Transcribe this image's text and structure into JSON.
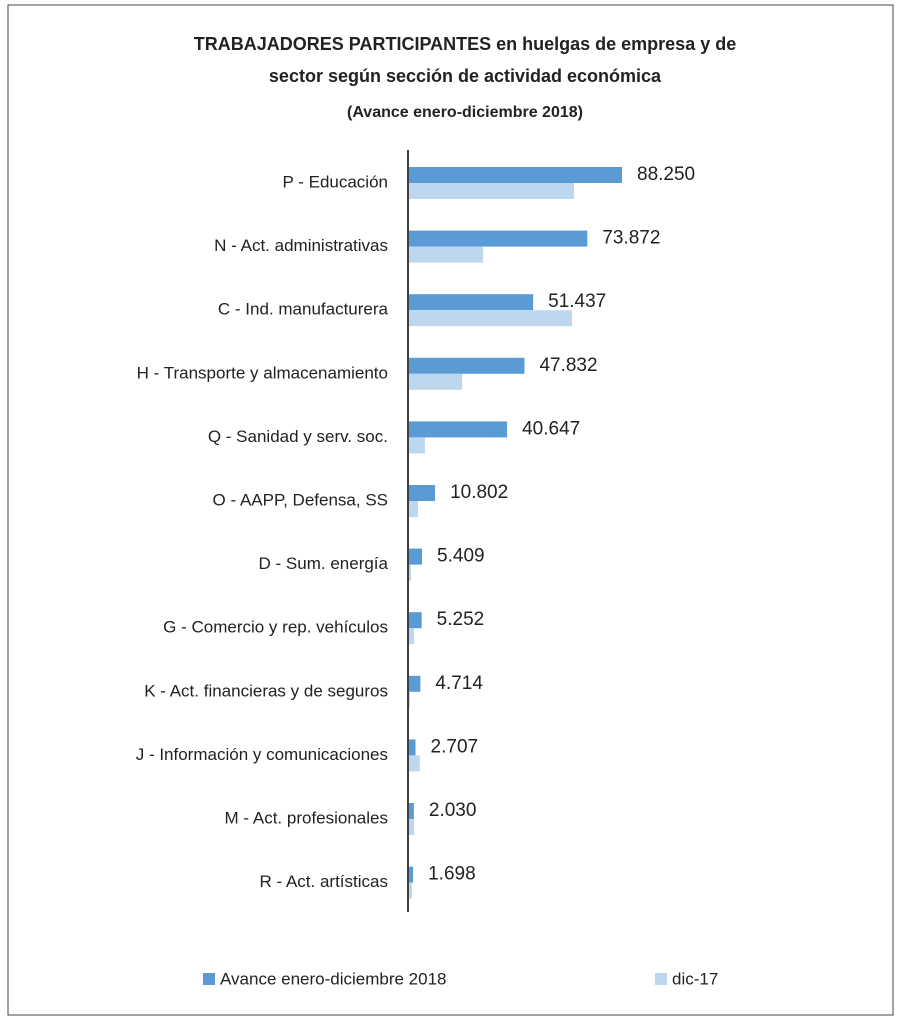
{
  "chart_data": {
    "type": "hbar",
    "title": "TRABAJADORES  PARTICIPANTES  en huelgas de empresa y de",
    "subtitle": "sector según sección de actividad económica",
    "period": "(Avance enero-diciembre 2018)",
    "categories": [
      "P - Educación",
      "N - Act. administrativas",
      "C - Ind. manufacturera",
      "H - Transporte y almacenamiento",
      "Q - Sanidad y serv. soc.",
      "O - AAPP, Defensa, SS",
      "D - Sum. energía",
      "G - Comercio y rep. vehículos",
      "K - Act. financieras y de seguros",
      "J - Información y comunicaciones",
      "M - Act. profesionales",
      "R - Act. artísticas"
    ],
    "series": [
      {
        "name": "Avance enero-diciembre  2018",
        "color": "#5b9bd5",
        "values": [
          88250,
          73872,
          51437,
          47832,
          40647,
          10802,
          5409,
          5252,
          4714,
          2707,
          2030,
          1698
        ],
        "value_labels": [
          "88.250",
          "73.872",
          "51.437",
          "47.832",
          "40.647",
          "10.802",
          "5.409",
          "5.252",
          "4.714",
          "2.707",
          "2.030",
          "1.698"
        ]
      },
      {
        "name": "dic-17",
        "color": "#bdd7ee",
        "values": [
          68400,
          30700,
          67500,
          22000,
          6600,
          3700,
          800,
          2100,
          400,
          4500,
          2100,
          1200
        ]
      }
    ]
  }
}
